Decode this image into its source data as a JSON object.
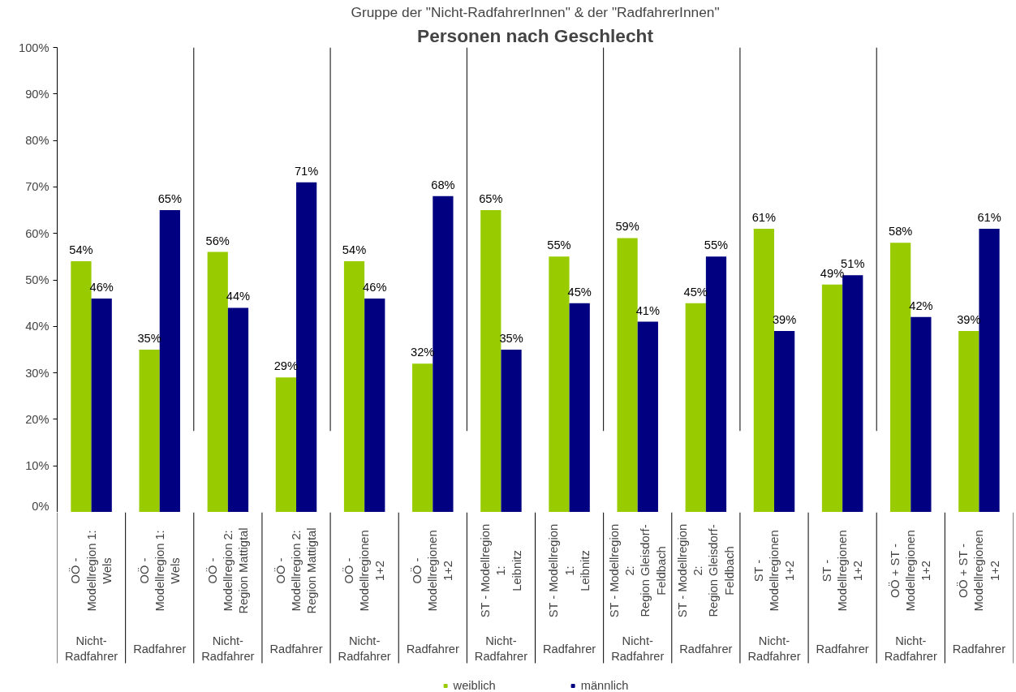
{
  "chart_data": {
    "type": "bar",
    "subtitle": "Gruppe der \"Nicht-RadfahrerInnen\" & der \"RadfahrerInnen\"",
    "title": "Personen nach Geschlecht",
    "categories": [
      "OÖ -\nModellregion 1:\nWels\n\nNicht-\nRadfahrer",
      "OÖ -\nModellregion 1:\nWels\n\nRadfahrer",
      "OÖ -\nModellregion 2:\nRegion Mattigtal\n\nNicht-\nRadfahrer",
      "OÖ -\nModellregion 2:\nRegion Mattigtal\n\nRadfahrer",
      "OÖ -\nModellregionen\n1+2\n\nNicht-\nRadfahrer",
      "OÖ -\nModellregionen\n1+2\n\nRadfahrer",
      "ST - Modellregion\n1:\nLeibnitz\n\nNicht-\nRadfahrer",
      "ST - Modellregion\n1:\nLeibnitz\n\nRadfahrer",
      "ST - Modellregion\n2:\nRegion Gleisdorf-\nFeldbach\n\nNicht-\nRadfahrer",
      "ST - Modellregion\n2:\nRegion Gleisdorf-\nFeldbach\n\nRadfahrer",
      "ST -\nModellregionen\n1+2\n\nNicht-\nRadfahrer",
      "ST -\nModellregionen\n1+2\n\nRadfahrer",
      "OÖ + ST -\nModellregionen\n1+2\n\nNicht-\nRadfahrer",
      "OÖ + ST -\nModellregionen\n1+2\n\nRadfahrer"
    ],
    "series": [
      {
        "name": "weiblich",
        "color": "#99cc00",
        "values": [
          54,
          35,
          56,
          29,
          54,
          32,
          65,
          55,
          59,
          45,
          61,
          49,
          58,
          39
        ],
        "value_labels": [
          "54%",
          "35%",
          "56%",
          "29%",
          "54%",
          "32%",
          "65%",
          "55%",
          "59%",
          "45%",
          "61%",
          "49%",
          "58%",
          "39%"
        ]
      },
      {
        "name": "männlich",
        "color": "#000080",
        "values": [
          46,
          65,
          44,
          71,
          46,
          68,
          35,
          45,
          41,
          55,
          39,
          51,
          42,
          61
        ],
        "value_labels": [
          "46%",
          "65%",
          "44%",
          "71%",
          "46%",
          "68%",
          "35%",
          "45%",
          "41%",
          "55%",
          "39%",
          "51%",
          "42%",
          "61%"
        ]
      }
    ],
    "ylim": [
      0,
      100
    ],
    "yticks": [
      {
        "value": 0,
        "label": "0%"
      },
      {
        "value": 10,
        "label": "10%"
      },
      {
        "value": 20,
        "label": "20%"
      },
      {
        "value": 30,
        "label": "30%"
      },
      {
        "value": 40,
        "label": "40%"
      },
      {
        "value": 50,
        "label": "50%"
      },
      {
        "value": 60,
        "label": "60%"
      },
      {
        "value": 70,
        "label": "70%"
      },
      {
        "value": 80,
        "label": "80%"
      },
      {
        "value": 90,
        "label": "90%"
      },
      {
        "value": 100,
        "label": "100%"
      }
    ],
    "grid": false,
    "legend": "bottom"
  }
}
